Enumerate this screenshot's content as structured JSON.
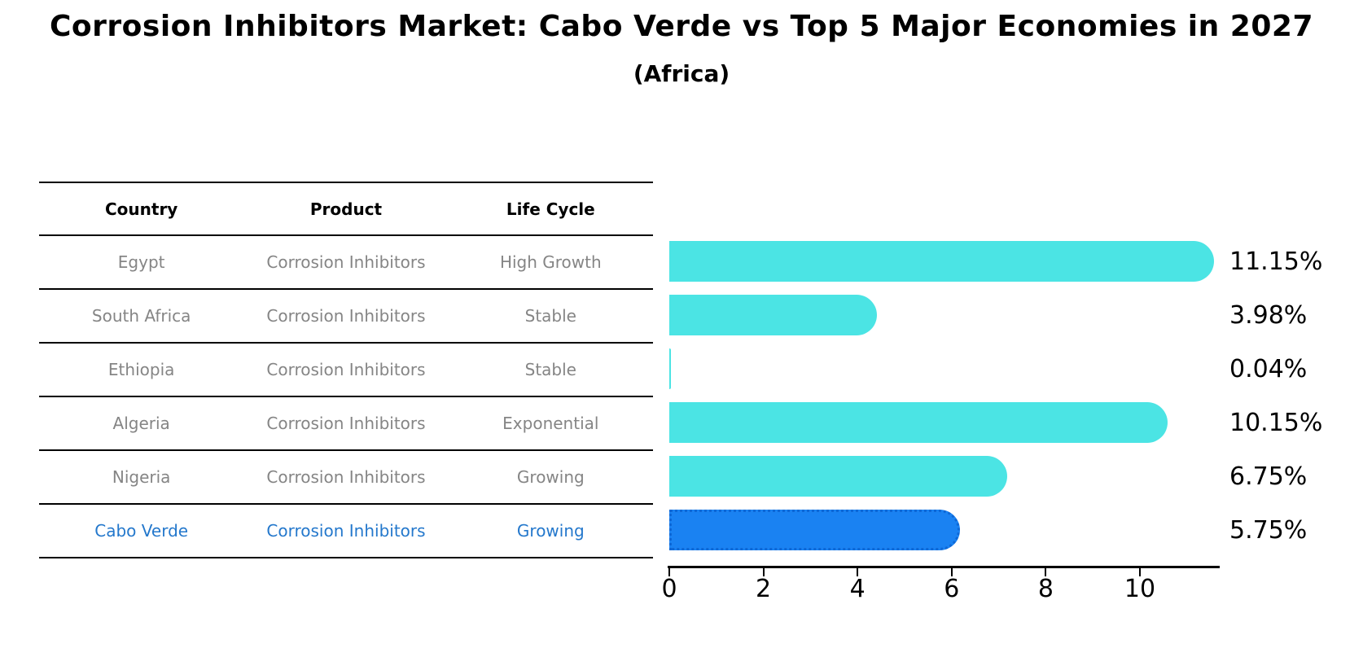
{
  "title": "Corrosion Inhibitors Market: Cabo Verde vs Top 5 Major Economies in 2027",
  "subtitle": "(Africa)",
  "table": {
    "headers": [
      "Country",
      "Product",
      "Life Cycle"
    ],
    "rows": [
      {
        "country": "Egypt",
        "product": "Corrosion Inhibitors",
        "life_cycle": "High Growth",
        "highlighted": false
      },
      {
        "country": "South Africa",
        "product": "Corrosion Inhibitors",
        "life_cycle": "Stable",
        "highlighted": false
      },
      {
        "country": "Ethiopia",
        "product": "Corrosion Inhibitors",
        "life_cycle": "Stable",
        "highlighted": false
      },
      {
        "country": "Algeria",
        "product": "Corrosion Inhibitors",
        "life_cycle": "Exponential",
        "highlighted": false
      },
      {
        "country": "Nigeria",
        "product": "Corrosion Inhibitors",
        "life_cycle": "Growing",
        "highlighted": false
      },
      {
        "country": "Cabo Verde",
        "product": "Corrosion Inhibitors",
        "life_cycle": "Growing",
        "highlighted": true
      }
    ]
  },
  "chart_data": {
    "type": "bar",
    "orientation": "horizontal",
    "categories": [
      "Egypt",
      "South Africa",
      "Ethiopia",
      "Algeria",
      "Nigeria",
      "Cabo Verde"
    ],
    "values": [
      11.15,
      3.98,
      0.04,
      10.15,
      6.75,
      5.75
    ],
    "value_labels": [
      "11.15%",
      "3.98%",
      "0.04%",
      "10.15%",
      "6.75%",
      "5.75%"
    ],
    "x_ticks": [
      "0",
      "2",
      "4",
      "6",
      "8",
      "10"
    ],
    "x_tick_values": [
      0,
      2,
      4,
      6,
      8,
      10
    ],
    "xlim": [
      0,
      11.7
    ],
    "grid": false,
    "legend": false,
    "bar_color": "#4be4e4",
    "highlight_bar_color": "#1a82f2",
    "highlight_index": 5
  },
  "colors": {
    "bar_cyan": "#4be4e4",
    "bar_blue": "#1a82f2",
    "highlight_text_blue": "#2478cc",
    "row_text_gray": "#858585",
    "axis_black": "#000000"
  }
}
